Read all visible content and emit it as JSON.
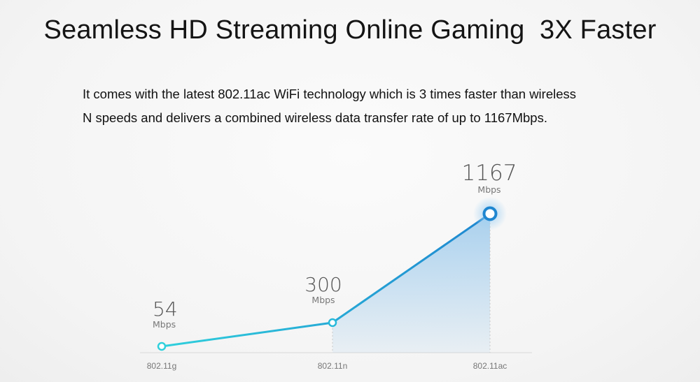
{
  "headline": "Seamless HD Streaming Online Gaming  3X Faster",
  "description": {
    "line1": "It comes with the latest 802.11ac WiFi technology which is 3 times faster than wireless",
    "line2": "N speeds and delivers a combined wireless data transfer rate of up to 1167Mbps."
  },
  "colors": {
    "line_start": "#2fd0dc",
    "line_end": "#1f86d0",
    "area_fill": "#8fc3ea",
    "axis": "#d8d8d8"
  },
  "chart_data": {
    "type": "line",
    "categories": [
      "802.11g",
      "802.11n",
      "802.11ac"
    ],
    "values": [
      54,
      300,
      1167
    ],
    "value_labels": [
      "54",
      "300",
      "1167"
    ],
    "unit_label": "Mbps",
    "grid": false,
    "xlabel": "",
    "ylabel": ""
  }
}
